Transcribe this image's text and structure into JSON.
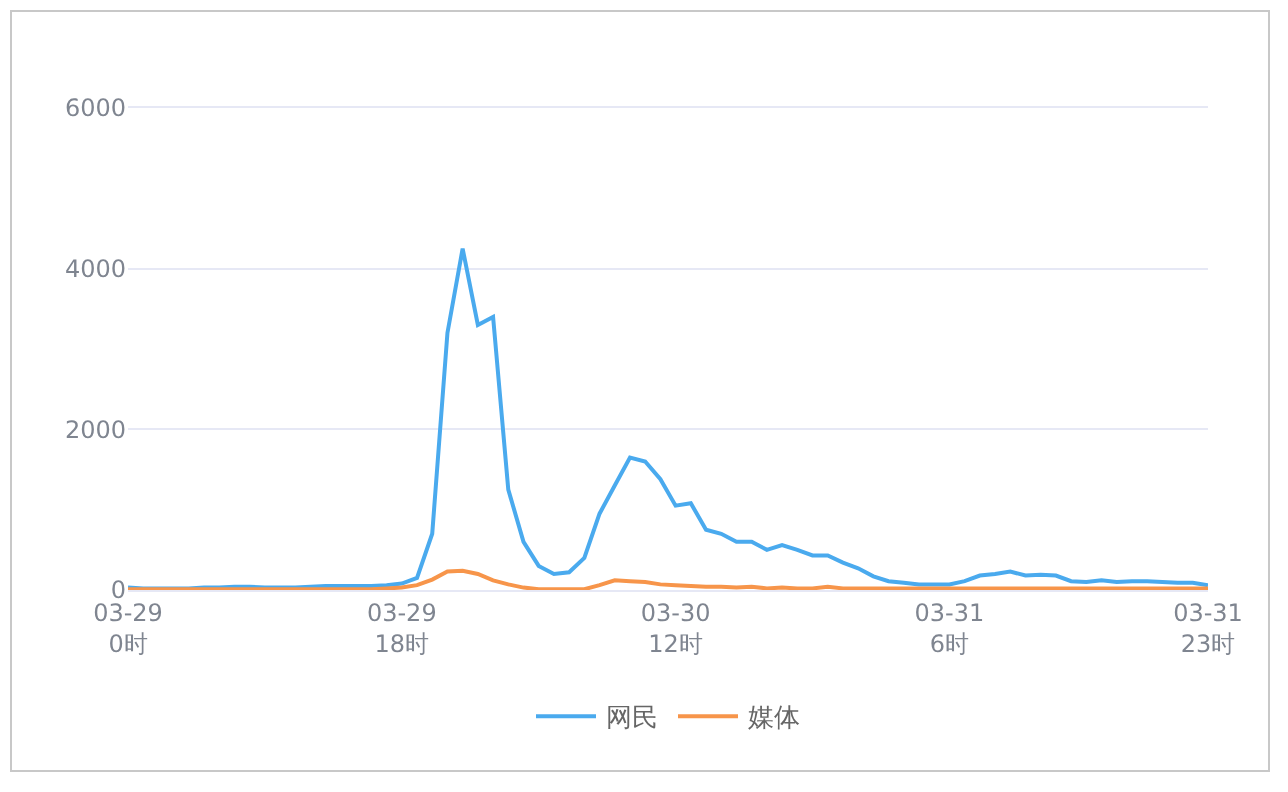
{
  "chart_data": {
    "type": "line",
    "categories": [
      "03-29\n0时",
      null,
      null,
      null,
      null,
      null,
      null,
      null,
      null,
      null,
      null,
      null,
      null,
      null,
      null,
      null,
      null,
      null,
      "03-29\n18时",
      null,
      null,
      null,
      null,
      null,
      null,
      null,
      null,
      null,
      null,
      null,
      null,
      null,
      null,
      null,
      null,
      null,
      "03-30\n12时",
      null,
      null,
      null,
      null,
      null,
      null,
      null,
      null,
      null,
      null,
      null,
      null,
      null,
      null,
      null,
      null,
      null,
      "03-31\n6时",
      null,
      null,
      null,
      null,
      null,
      null,
      null,
      null,
      null,
      null,
      null,
      null,
      null,
      null,
      null,
      null,
      "03-31\n23时"
    ],
    "series": [
      {
        "name": "网民",
        "color": "#4aaaee",
        "values": [
          30,
          20,
          20,
          20,
          20,
          30,
          30,
          40,
          40,
          30,
          30,
          30,
          40,
          50,
          50,
          50,
          50,
          60,
          80,
          150,
          700,
          3200,
          4250,
          3300,
          3400,
          1250,
          600,
          300,
          200,
          220,
          400,
          950,
          1300,
          1650,
          1600,
          1380,
          1050,
          1080,
          750,
          700,
          600,
          600,
          500,
          560,
          500,
          430,
          430,
          340,
          270,
          170,
          110,
          90,
          70,
          70,
          70,
          110,
          180,
          200,
          230,
          180,
          190,
          180,
          110,
          100,
          120,
          100,
          110,
          110,
          100,
          90,
          90,
          60
        ]
      },
      {
        "name": "媒体",
        "color": "#f7954a",
        "values": [
          10,
          10,
          10,
          10,
          10,
          10,
          10,
          10,
          10,
          10,
          10,
          10,
          10,
          10,
          10,
          10,
          10,
          20,
          30,
          60,
          130,
          230,
          240,
          200,
          120,
          70,
          30,
          10,
          10,
          10,
          10,
          60,
          120,
          110,
          100,
          70,
          60,
          50,
          40,
          40,
          30,
          40,
          20,
          30,
          20,
          20,
          40,
          20,
          20,
          20,
          20,
          20,
          20,
          20,
          20,
          20,
          20,
          20,
          20,
          20,
          20,
          20,
          20,
          20,
          20,
          20,
          20,
          20,
          20,
          20,
          20,
          20
        ]
      }
    ],
    "ylim": [
      0,
      6000
    ],
    "yticks": [
      0,
      2000,
      4000,
      6000
    ],
    "grid": "y",
    "legend": "bottom"
  }
}
